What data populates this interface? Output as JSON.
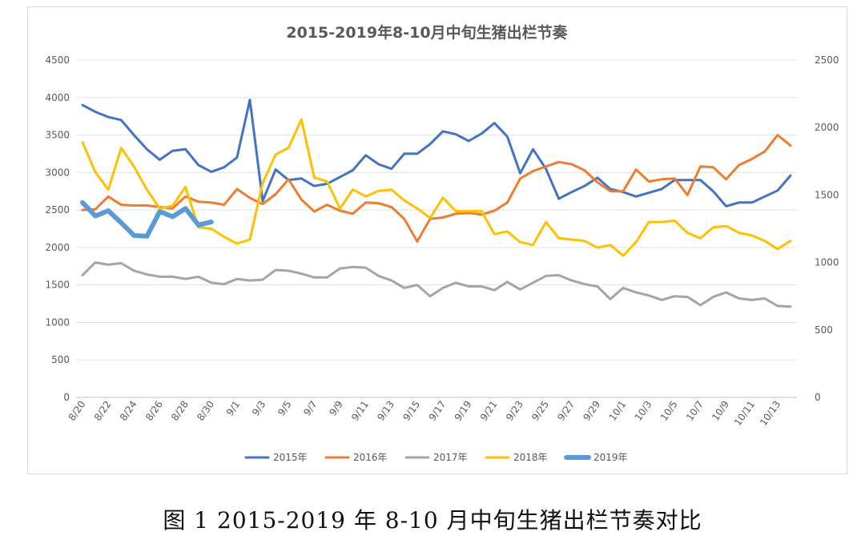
{
  "chart_data": {
    "type": "line",
    "title": "2015-2019年8-10月中旬生猪出栏节奏",
    "caption": "图 1 2015-2019 年 8-10 月中旬生猪出栏节奏对比",
    "xlabel": "",
    "ylabel": "",
    "ylim": [
      0,
      4500
    ],
    "y_ticks": [
      0,
      500,
      1000,
      1500,
      2000,
      2500,
      3000,
      3500,
      4000,
      4500
    ],
    "y2lim": [
      0,
      2500
    ],
    "y2_ticks": [
      0,
      500,
      1000,
      1500,
      2000,
      2500
    ],
    "grid": true,
    "legend_position": "bottom",
    "x_tick_labels": [
      "8/20",
      "8/22",
      "8/24",
      "8/26",
      "8/28",
      "8/30",
      "9/1",
      "9/3",
      "9/5",
      "9/7",
      "9/9",
      "9/11",
      "9/13",
      "9/15",
      "9/17",
      "9/19",
      "9/21",
      "9/23",
      "9/25",
      "9/27",
      "9/29",
      "10/1",
      "10/3",
      "10/5",
      "10/7",
      "10/9",
      "10/11",
      "10/13"
    ],
    "x": [
      "8/20",
      "8/21",
      "8/22",
      "8/23",
      "8/24",
      "8/25",
      "8/26",
      "8/27",
      "8/28",
      "8/29",
      "8/30",
      "8/31",
      "9/1",
      "9/2",
      "9/3",
      "9/4",
      "9/5",
      "9/6",
      "9/7",
      "9/8",
      "9/9",
      "9/10",
      "9/11",
      "9/12",
      "9/13",
      "9/14",
      "9/15",
      "9/16",
      "9/17",
      "9/18",
      "9/19",
      "9/20",
      "9/21",
      "9/22",
      "9/23",
      "9/24",
      "9/25",
      "9/26",
      "9/27",
      "9/28",
      "9/29",
      "9/30",
      "10/1",
      "10/2",
      "10/3",
      "10/4",
      "10/5",
      "10/6",
      "10/7",
      "10/8",
      "10/9",
      "10/10",
      "10/11",
      "10/12",
      "10/13",
      "10/14"
    ],
    "series": [
      {
        "name": "2015年",
        "color": "#4472c4",
        "axis": "left",
        "width": 3,
        "values": [
          3900,
          3810,
          3740,
          3700,
          3500,
          3310,
          3170,
          3290,
          3310,
          3100,
          3010,
          3070,
          3200,
          3970,
          2620,
          3040,
          2900,
          2920,
          2820,
          2850,
          2940,
          3030,
          3230,
          3110,
          3050,
          3250,
          3250,
          3380,
          3550,
          3510,
          3420,
          3520,
          3660,
          3480,
          2990,
          3310,
          3050,
          2650,
          2740,
          2820,
          2930,
          2780,
          2740,
          2680,
          2730,
          2780,
          2900,
          2900,
          2900,
          2750,
          2550,
          2600,
          2600,
          2680,
          2760,
          2960
        ]
      },
      {
        "name": "2016年",
        "color": "#ed7d31",
        "axis": "left",
        "width": 3,
        "values": [
          2500,
          2510,
          2680,
          2570,
          2560,
          2560,
          2540,
          2520,
          2680,
          2610,
          2600,
          2570,
          2780,
          2660,
          2580,
          2710,
          2910,
          2640,
          2480,
          2570,
          2490,
          2450,
          2600,
          2590,
          2540,
          2380,
          2080,
          2380,
          2400,
          2450,
          2460,
          2440,
          2490,
          2600,
          2920,
          3020,
          3080,
          3140,
          3110,
          3030,
          2870,
          2750,
          2750,
          3040,
          2880,
          2910,
          2920,
          2700,
          3080,
          3070,
          2910,
          3100,
          3180,
          3280,
          3500,
          3360
        ]
      },
      {
        "name": "2017年",
        "color": "#a5a5a5",
        "axis": "left",
        "width": 3,
        "values": [
          1630,
          1800,
          1770,
          1790,
          1690,
          1640,
          1610,
          1610,
          1580,
          1610,
          1530,
          1510,
          1580,
          1560,
          1570,
          1700,
          1690,
          1650,
          1600,
          1600,
          1720,
          1740,
          1730,
          1620,
          1560,
          1460,
          1500,
          1350,
          1460,
          1530,
          1480,
          1480,
          1430,
          1540,
          1440,
          1530,
          1620,
          1630,
          1560,
          1510,
          1480,
          1310,
          1460,
          1400,
          1360,
          1300,
          1350,
          1340,
          1230,
          1340,
          1400,
          1320,
          1300,
          1320,
          1220,
          1210
        ]
      },
      {
        "name": "2018年",
        "color": "#ffc000",
        "axis": "right",
        "width": 3,
        "values": [
          1890,
          1670,
          1540,
          1850,
          1710,
          1540,
          1400,
          1420,
          1560,
          1260,
          1250,
          1190,
          1140,
          1170,
          1590,
          1800,
          1850,
          2060,
          1630,
          1600,
          1400,
          1540,
          1490,
          1530,
          1540,
          1460,
          1400,
          1330,
          1480,
          1380,
          1380,
          1380,
          1210,
          1230,
          1150,
          1130,
          1300,
          1180,
          1170,
          1160,
          1110,
          1130,
          1050,
          1150,
          1300,
          1300,
          1310,
          1220,
          1180,
          1260,
          1270,
          1220,
          1200,
          1160,
          1100,
          1160
        ]
      },
      {
        "name": "2019年",
        "color": "#5b9bd5",
        "axis": "left",
        "width": 6,
        "values": [
          2600,
          2420,
          2490,
          2330,
          2160,
          2150,
          2480,
          2410,
          2520,
          2300,
          2340,
          null,
          null,
          null,
          null,
          null,
          null,
          null,
          null,
          null,
          null,
          null,
          null,
          null,
          null,
          null,
          null,
          null,
          null,
          null,
          null,
          null,
          null,
          null,
          null,
          null,
          null,
          null,
          null,
          null,
          null,
          null,
          null,
          null,
          null,
          null,
          null,
          null,
          null,
          null,
          null,
          null,
          null,
          null,
          null,
          null
        ]
      }
    ]
  }
}
